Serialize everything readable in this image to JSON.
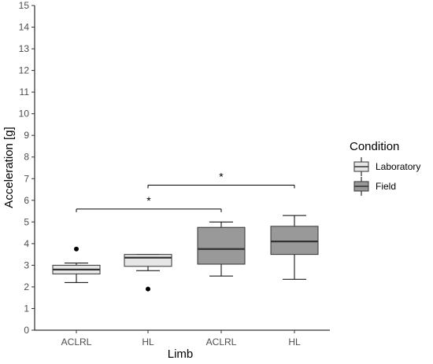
{
  "chart_data": {
    "type": "box",
    "xlabel": "Limb",
    "ylabel": "Acceleration [g]",
    "ylim": [
      0,
      15
    ],
    "yticks": [
      0,
      1,
      2,
      3,
      4,
      5,
      6,
      7,
      8,
      9,
      10,
      11,
      12,
      13,
      14,
      15
    ],
    "categories": [
      "ACLRL",
      "HL",
      "ACLRL",
      "HL"
    ],
    "grid": false,
    "legend": {
      "title": "Condition",
      "position": "right",
      "entries": [
        {
          "label": "Laboratory",
          "color": "#e6e6e6"
        },
        {
          "label": "Field",
          "color": "#999999"
        }
      ]
    },
    "boxes": [
      {
        "category": "ACLRL",
        "condition": "Laboratory",
        "min": 2.2,
        "q1": 2.6,
        "median": 2.8,
        "q3": 3.0,
        "max": 3.1,
        "outliers": [
          3.75
        ]
      },
      {
        "category": "HL",
        "condition": "Laboratory",
        "min": 2.75,
        "q1": 2.95,
        "median": 3.35,
        "q3": 3.5,
        "max": 3.5,
        "outliers": [
          1.9
        ]
      },
      {
        "category": "ACLRL",
        "condition": "Field",
        "min": 2.5,
        "q1": 3.05,
        "median": 3.75,
        "q3": 4.75,
        "max": 5.0,
        "outliers": []
      },
      {
        "category": "HL",
        "condition": "Field",
        "min": 2.35,
        "q1": 3.5,
        "median": 4.1,
        "q3": 4.8,
        "max": 5.3,
        "outliers": []
      }
    ],
    "annotations": [
      {
        "from": 0,
        "to": 2,
        "y": 5.6,
        "label": "*"
      },
      {
        "from": 1,
        "to": 3,
        "y": 6.7,
        "label": "*"
      }
    ]
  }
}
